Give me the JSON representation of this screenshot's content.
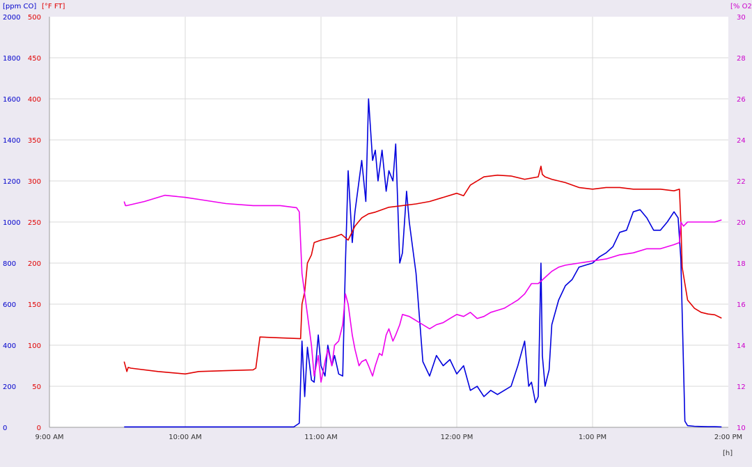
{
  "colors": {
    "co": "#0000dd",
    "ft": "#e00000",
    "o2": "#ee00ee",
    "axis_text": "#333333",
    "grid": "#d8d8d8",
    "background": "#ece9f2"
  },
  "chart_data": {
    "type": "line",
    "grid": true,
    "x_unit_label": "[h]",
    "x_ticks": [
      "9:00 AM",
      "10:00 AM",
      "11:00 AM",
      "12:00 PM",
      "1:00 PM",
      "2:00 PM"
    ],
    "x_range_hours": [
      9,
      14
    ],
    "axes": {
      "co": {
        "label": "[ppm CO]",
        "range": [
          0,
          2000
        ],
        "ticks": [
          "0",
          "200",
          "400",
          "600",
          "800",
          "1000",
          "1200",
          "1400",
          "1600",
          "1800",
          "2000"
        ]
      },
      "ft": {
        "label": "[°F FT]",
        "range": [
          0,
          500
        ],
        "ticks": [
          "0",
          "50",
          "100",
          "150",
          "200",
          "250",
          "300",
          "350",
          "400",
          "450",
          "500"
        ]
      },
      "o2": {
        "label": "[% O2",
        "range": [
          10,
          30
        ],
        "ticks": [
          "10",
          "12",
          "14",
          "16",
          "18",
          "20",
          "22",
          "24",
          "26",
          "28",
          "30"
        ]
      }
    },
    "series": [
      {
        "name": "ppm CO",
        "axis": "co",
        "color_key": "co",
        "x": [
          9.55,
          10.0,
          10.5,
          10.8,
          10.84,
          10.86,
          10.88,
          10.9,
          10.93,
          10.95,
          10.98,
          11.0,
          11.03,
          11.05,
          11.08,
          11.1,
          11.13,
          11.16,
          11.18,
          11.2,
          11.23,
          11.25,
          11.28,
          11.3,
          11.33,
          11.35,
          11.38,
          11.4,
          11.42,
          11.45,
          11.48,
          11.5,
          11.53,
          11.55,
          11.58,
          11.6,
          11.63,
          11.65,
          11.68,
          11.7,
          11.75,
          11.8,
          11.85,
          11.9,
          11.95,
          12.0,
          12.05,
          12.1,
          12.15,
          12.2,
          12.25,
          12.3,
          12.35,
          12.4,
          12.45,
          12.5,
          12.53,
          12.55,
          12.58,
          12.6,
          12.62,
          12.63,
          12.65,
          12.68,
          12.7,
          12.75,
          12.8,
          12.85,
          12.9,
          12.95,
          13.0,
          13.05,
          13.1,
          13.15,
          13.2,
          13.25,
          13.3,
          13.35,
          13.4,
          13.45,
          13.5,
          13.55,
          13.6,
          13.63,
          13.65,
          13.68,
          13.7,
          13.75,
          13.8,
          13.85,
          13.9,
          13.95
        ],
        "y": [
          2,
          2,
          2,
          2,
          20,
          420,
          150,
          390,
          230,
          220,
          450,
          300,
          250,
          400,
          300,
          350,
          260,
          250,
          800,
          1250,
          900,
          1050,
          1200,
          1300,
          1100,
          1600,
          1300,
          1350,
          1200,
          1350,
          1150,
          1250,
          1200,
          1380,
          800,
          850,
          1150,
          1000,
          850,
          750,
          320,
          250,
          350,
          300,
          330,
          260,
          300,
          180,
          200,
          150,
          180,
          160,
          180,
          200,
          300,
          420,
          200,
          220,
          120,
          150,
          800,
          350,
          200,
          280,
          500,
          620,
          690,
          720,
          780,
          790,
          800,
          830,
          850,
          880,
          950,
          960,
          1050,
          1060,
          1020,
          960,
          960,
          1000,
          1050,
          1020,
          820,
          30,
          8,
          5,
          4,
          3,
          3,
          2
        ]
      },
      {
        "name": "°F FT",
        "axis": "ft",
        "color_key": "ft",
        "x": [
          9.55,
          9.57,
          9.58,
          9.6,
          9.8,
          10.0,
          10.1,
          10.3,
          10.5,
          10.52,
          10.55,
          10.7,
          10.85,
          10.86,
          10.88,
          10.9,
          10.93,
          10.95,
          11.0,
          11.05,
          11.1,
          11.15,
          11.2,
          11.25,
          11.3,
          11.35,
          11.4,
          11.45,
          11.5,
          11.6,
          11.7,
          11.8,
          11.9,
          12.0,
          12.05,
          12.1,
          12.2,
          12.3,
          12.4,
          12.5,
          12.6,
          12.62,
          12.63,
          12.65,
          12.7,
          12.8,
          12.9,
          13.0,
          13.1,
          13.2,
          13.3,
          13.4,
          13.5,
          13.6,
          13.64,
          13.65,
          13.66,
          13.68,
          13.7,
          13.75,
          13.8,
          13.85,
          13.9,
          13.95
        ],
        "y": [
          80,
          68,
          73,
          72,
          68,
          65,
          68,
          69,
          70,
          72,
          110,
          109,
          108,
          150,
          165,
          200,
          210,
          225,
          228,
          230,
          232,
          235,
          228,
          245,
          255,
          260,
          262,
          265,
          268,
          270,
          272,
          275,
          280,
          285,
          282,
          295,
          305,
          307,
          306,
          302,
          305,
          318,
          308,
          305,
          302,
          298,
          292,
          290,
          292,
          292,
          290,
          290,
          290,
          288,
          290,
          250,
          195,
          175,
          155,
          145,
          140,
          138,
          137,
          133
        ]
      },
      {
        "name": "% O2",
        "axis": "o2",
        "color_key": "o2",
        "x": [
          9.55,
          9.56,
          9.57,
          9.7,
          9.85,
          10.0,
          10.1,
          10.3,
          10.5,
          10.7,
          10.82,
          10.84,
          10.86,
          10.88,
          10.9,
          10.93,
          10.95,
          10.98,
          11.0,
          11.03,
          11.05,
          11.08,
          11.1,
          11.13,
          11.16,
          11.18,
          11.2,
          11.23,
          11.25,
          11.28,
          11.3,
          11.33,
          11.35,
          11.38,
          11.4,
          11.43,
          11.45,
          11.48,
          11.5,
          11.53,
          11.55,
          11.58,
          11.6,
          11.65,
          11.7,
          11.75,
          11.8,
          11.85,
          11.9,
          11.95,
          12.0,
          12.05,
          12.1,
          12.15,
          12.2,
          12.25,
          12.3,
          12.35,
          12.4,
          12.45,
          12.5,
          12.55,
          12.6,
          12.65,
          12.7,
          12.75,
          12.8,
          12.9,
          13.0,
          13.1,
          13.2,
          13.3,
          13.4,
          13.5,
          13.6,
          13.64,
          13.65,
          13.67,
          13.7,
          13.8,
          13.9,
          13.95
        ],
        "y": [
          21.0,
          20.8,
          20.8,
          21.0,
          21.3,
          21.2,
          21.1,
          20.9,
          20.8,
          20.8,
          20.7,
          20.5,
          17.5,
          16.5,
          15.5,
          14.0,
          12.5,
          13.5,
          12.2,
          13.2,
          13.8,
          13.0,
          14.0,
          14.2,
          15.0,
          16.5,
          16.0,
          14.5,
          13.8,
          13.0,
          13.2,
          13.3,
          13.0,
          12.5,
          13.0,
          13.6,
          13.5,
          14.5,
          14.8,
          14.2,
          14.5,
          15.0,
          15.5,
          15.4,
          15.2,
          15.0,
          14.8,
          15.0,
          15.1,
          15.3,
          15.5,
          15.4,
          15.6,
          15.3,
          15.4,
          15.6,
          15.7,
          15.8,
          16.0,
          16.2,
          16.5,
          17.0,
          17.0,
          17.3,
          17.6,
          17.8,
          17.9,
          18.0,
          18.1,
          18.2,
          18.4,
          18.5,
          18.7,
          18.7,
          18.9,
          19.0,
          20.0,
          19.8,
          20.0,
          20.0,
          20.0,
          20.1
        ]
      }
    ]
  }
}
